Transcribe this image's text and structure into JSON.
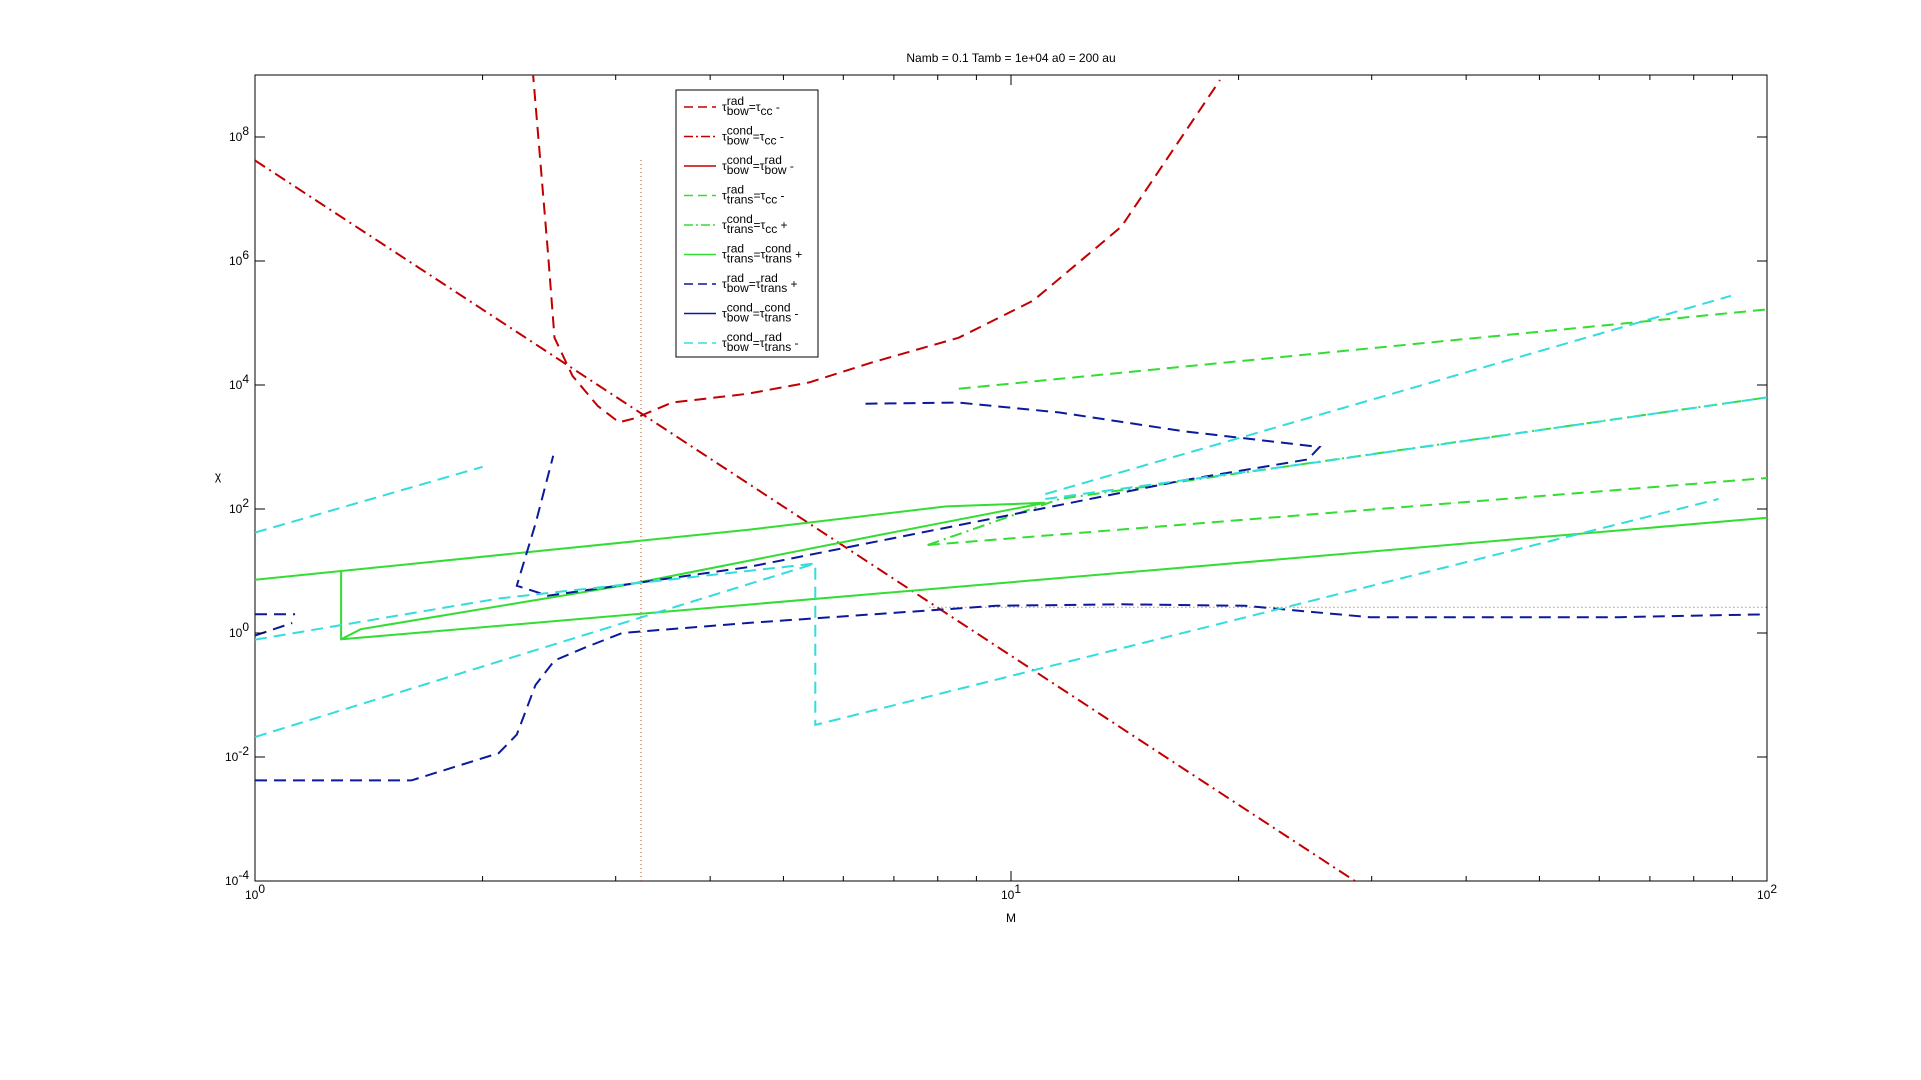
{
  "chart_data": {
    "type": "line",
    "title": "Namb = 0.1  Tamb = 1e+04  a0 = 200 au",
    "xlabel": "M",
    "ylabel": "χ",
    "xscale": "log",
    "yscale": "log",
    "xlim": [
      1,
      100
    ],
    "ylim": [
      0.0001,
      1000000000
    ],
    "xticks": [
      {
        "value": 1,
        "label": "10",
        "exponent": "0"
      },
      {
        "value": 10,
        "label": "10",
        "exponent": "1"
      },
      {
        "value": 100,
        "label": "10",
        "exponent": "2"
      }
    ],
    "xminorticks": [
      2,
      3,
      4,
      5,
      6,
      7,
      8,
      9,
      20,
      30,
      40,
      50,
      60,
      70,
      80,
      90
    ],
    "yticks": [
      {
        "value": 0.0001,
        "label": "10",
        "exponent": "-4"
      },
      {
        "value": 0.01,
        "label": "10",
        "exponent": "-2"
      },
      {
        "value": 1,
        "label": "10",
        "exponent": "0"
      },
      {
        "value": 100,
        "label": "10",
        "exponent": "2"
      },
      {
        "value": 10000,
        "label": "10",
        "exponent": "4"
      },
      {
        "value": 1000000,
        "label": "10",
        "exponent": "6"
      },
      {
        "value": 100000000,
        "label": "10",
        "exponent": "8"
      }
    ],
    "legend": "top-inside",
    "series": [
      {
        "name": [
          "τ",
          {
            "sup": "rad",
            "sub": "bow"
          },
          "=τ",
          {
            "sub": "cc"
          },
          " -"
        ],
        "color": "#c00000",
        "dash": "dashed",
        "x": [
          2.33,
          2.44,
          2.49,
          2.63,
          2.84,
          3.03,
          3.18,
          3.56,
          4.48,
          5.41,
          6.54,
          8.53,
          10.7,
          14.0,
          18.9
        ],
        "values": [
          1200000000,
          1400000,
          58000,
          14000,
          4600,
          2500,
          2900,
          5200,
          7200,
          11000,
          23000,
          58000,
          230000,
          3600000,
          830000000
        ]
      },
      {
        "name": [
          "τ",
          {
            "sup": "cond",
            "sub": "bow"
          },
          "=τ",
          {
            "sub": "cc"
          },
          " -"
        ],
        "color": "#c00000",
        "dash": "dashdot",
        "x": [
          1,
          28.5
        ],
        "values": [
          42000000,
          0.0001
        ]
      },
      {
        "name": [
          "τ",
          {
            "sup": "cond",
            "sub": "bow"
          },
          "=τ",
          {
            "sup": "rad",
            "sub": "bow"
          },
          " -"
        ],
        "color": "#c00000",
        "dash": "solid"
      },
      {
        "name": [
          "τ",
          {
            "sup": "rad",
            "sub": "trans"
          },
          "=τ",
          {
            "sub": "cc"
          },
          " -"
        ],
        "color": "#33dd33",
        "dash": "dashed",
        "x": [
          8.53,
          100,
          null,
          7.76,
          100
        ],
        "values": [
          8700,
          166000,
          null,
          26.3,
          316
        ]
      },
      {
        "name": [
          "τ",
          {
            "sup": "cond",
            "sub": "trans"
          },
          "=τ",
          {
            "sub": "cc"
          },
          " +"
        ],
        "color": "#33dd33",
        "dash": "dashdot",
        "x": [
          7.76,
          11.6,
          100
        ],
        "values": [
          26.3,
          145,
          6300
        ]
      },
      {
        "name": [
          "τ",
          {
            "sup": "rad",
            "sub": "trans"
          },
          "=τ",
          {
            "sup": "cond",
            "sub": "trans"
          },
          " +"
        ],
        "color": "#33dd33",
        "dash": "solid",
        "x": [
          1,
          4.48,
          8.21,
          11.1,
          6.54,
          3.06,
          1.38,
          1.3,
          null,
          1.3,
          1.3,
          100
        ],
        "values": [
          7.2,
          46,
          110,
          126,
          36,
          5.8,
          1.15,
          0.79,
          null,
          10,
          0.79,
          72
        ]
      },
      {
        "name": [
          "τ",
          {
            "sup": "rad",
            "sub": "bow"
          },
          "=τ",
          {
            "sup": "rad",
            "sub": "trans"
          },
          " +"
        ],
        "color": "#0a1a9a",
        "dash": "dashed",
        "x": [
          1,
          1.61,
          2.1,
          2.22,
          2.35,
          2.49,
          2.73,
          3.06,
          4.48,
          9.55,
          14,
          20.4,
          29.8,
          63.7,
          100,
          null,
          6.42,
          8.53,
          11.6,
          16.9,
          25.6,
          24.7,
          16.9,
          9.55,
          4.48,
          2.44,
          2.22,
          2.35,
          2.48,
          null,
          1,
          1.12,
          null,
          1,
          1.13
        ],
        "values": [
          0.0042,
          0.0042,
          0.0115,
          0.023,
          0.145,
          0.36,
          0.58,
          1.0,
          1.45,
          2.75,
          2.9,
          2.75,
          1.8,
          1.8,
          2.0,
          null,
          5000,
          5200,
          3600,
          1800,
          1000,
          630,
          290,
          72,
          11.5,
          4,
          5.8,
          58,
          720,
          null,
          0.91,
          1.45,
          null,
          2.0,
          2.0
        ]
      },
      {
        "name": [
          "τ",
          {
            "sup": "cond",
            "sub": "bow"
          },
          "=τ",
          {
            "sup": "cond",
            "sub": "trans"
          },
          " -"
        ],
        "color": "#0a1a9a",
        "dash": "solid"
      },
      {
        "name": [
          "τ",
          {
            "sup": "cond",
            "sub": "bow"
          },
          "=τ",
          {
            "sup": "rad",
            "sub": "trans"
          },
          " -"
        ],
        "color": "#33dddd",
        "dash": "dashed",
        "x": [
          1,
          2.0,
          null,
          1,
          2.1,
          5.51,
          5.51,
          86.3,
          null,
          1,
          5.51,
          null,
          11.1,
          89.6,
          null,
          11.1,
          25.6,
          100
        ],
        "values": [
          41.7,
          480,
          null,
          0.78,
          3.6,
          13.2,
          0.033,
          145,
          null,
          0.021,
          13.2,
          null,
          174,
          275000,
          null,
          145,
          575,
          6300
        ]
      }
    ],
    "reference_lines": [
      {
        "color": "#b05020",
        "x": [
          3.24,
          3.24
        ],
        "values": [
          0.0001,
          46000000
        ]
      },
      {
        "color": "#b05020",
        "x": [
          7.8,
          100
        ],
        "values": [
          2.6,
          2.6
        ]
      }
    ]
  }
}
